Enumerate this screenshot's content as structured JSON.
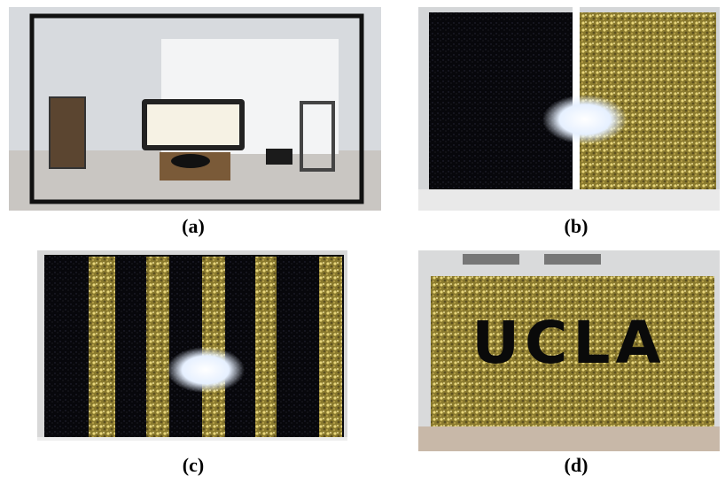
{
  "panels": [
    {
      "label": "(a)"
    },
    {
      "label": "(b)"
    },
    {
      "label": "(c)"
    },
    {
      "label": "(d)",
      "sign_text": "UCLA"
    }
  ]
}
